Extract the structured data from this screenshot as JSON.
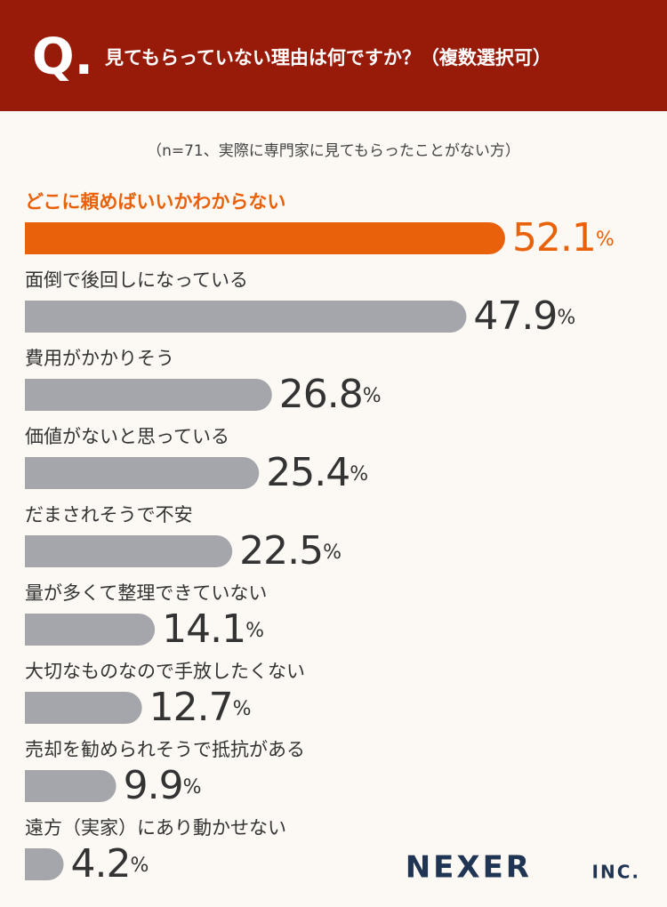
{
  "chart_data": {
    "type": "bar",
    "question_mark": "Q.",
    "title": "見てもらっていない理由は何ですか？（複数選択可）",
    "subtitle": "（n=71、実際に専門家に見てもらったことがない方）",
    "categories": [
      "どこに頼めばいいかわからない",
      "面倒で後回しになっている",
      "費用がかかりそう",
      "価値がないと思っている",
      "だまされそうで不安",
      "量が多くて整理できていない",
      "大切なものなので手放したくない",
      "売却を勧められそうで抵抗がある",
      "遠方（実家）にあり動かせない"
    ],
    "values": [
      52.1,
      47.9,
      26.8,
      25.4,
      22.5,
      14.1,
      12.7,
      9.9,
      4.2
    ],
    "value_labels": [
      "52.1%",
      "47.9%",
      "26.8%",
      "25.4%",
      "22.5%",
      "14.1%",
      "12.7%",
      "9.9%",
      "4.2%"
    ],
    "colors": [
      "#e9620b",
      "#a5a6ab",
      "#a5a6ab",
      "#a5a6ab",
      "#a5a6ab",
      "#a5a6ab",
      "#a5a6ab",
      "#a5a6ab",
      "#a5a6ab"
    ],
    "label_colors": [
      "#e9620b",
      "#333333",
      "#333333",
      "#333333",
      "#333333",
      "#333333",
      "#333333",
      "#333333",
      "#333333"
    ],
    "xlim": [
      0,
      55
    ],
    "logo": "NEXER",
    "logo_suffix": "INC."
  }
}
